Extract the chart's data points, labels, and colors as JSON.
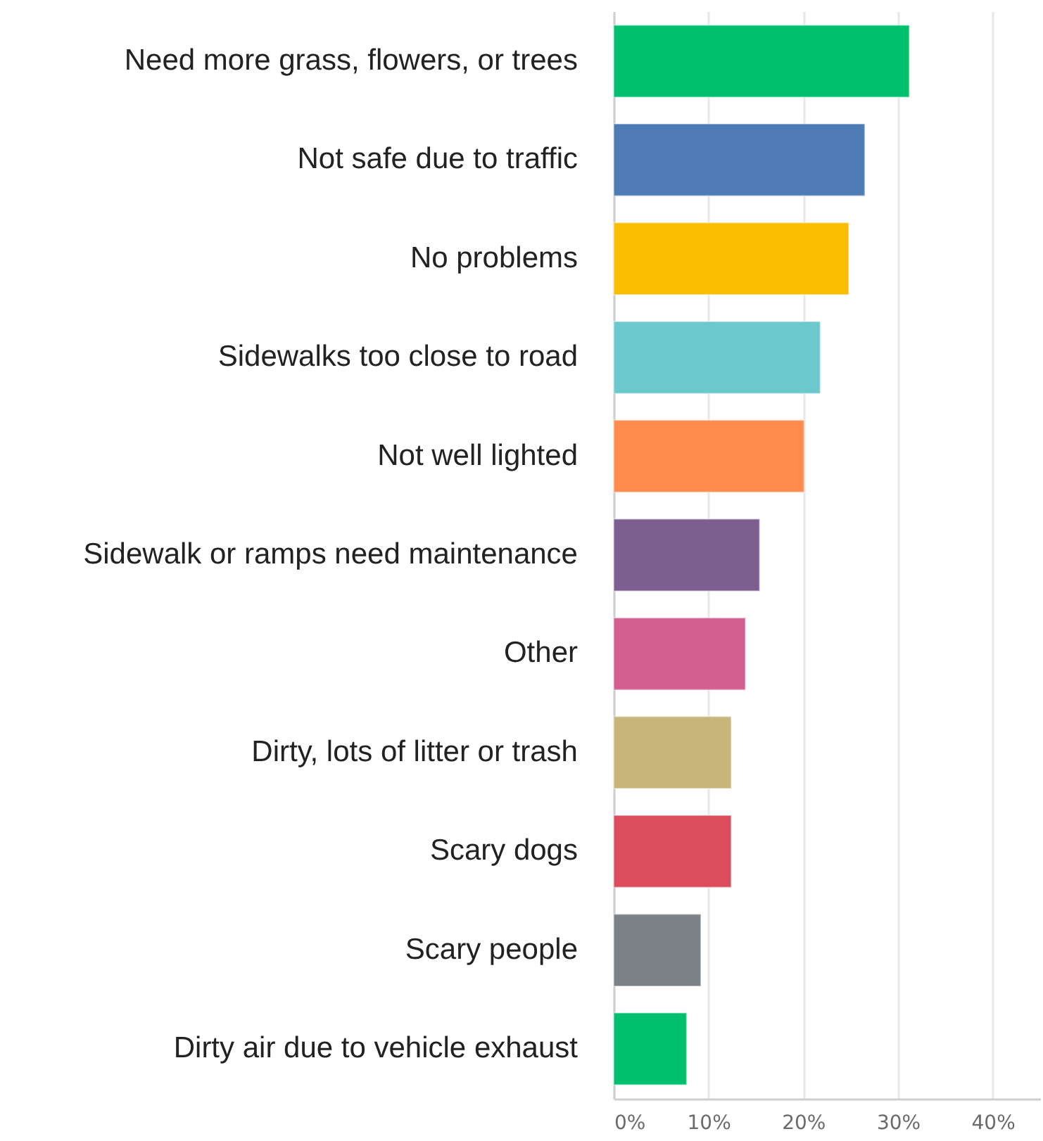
{
  "chart_data": {
    "type": "bar",
    "orientation": "horizontal",
    "categories": [
      "Need more grass, flowers, or trees",
      "Not safe due to traffic",
      "No problems",
      "Sidewalks too close to road",
      "Not well lighted",
      "Sidewalk or ramps need maintenance",
      "Other",
      "Dirty, lots of litter or trash",
      "Scary dogs",
      "Scary people",
      "Dirty air due to vehicle exhaust"
    ],
    "values": [
      31.2,
      26.5,
      24.8,
      21.8,
      20.1,
      15.4,
      13.9,
      12.4,
      12.4,
      9.2,
      7.7
    ],
    "colors": [
      "#00bf6f",
      "#507cb6",
      "#f9be00",
      "#6bc8cd",
      "#ff8b4f",
      "#7d5e90",
      "#d25f90",
      "#c8b57a",
      "#db4d5c",
      "#7a8187",
      "#00bf6f"
    ],
    "xlim": [
      0,
      45
    ],
    "xticks": [
      {
        "value": 0,
        "label": "0%"
      },
      {
        "value": 10,
        "label": "10%"
      },
      {
        "value": 20,
        "label": "20%"
      },
      {
        "value": 30,
        "label": "30%"
      },
      {
        "value": 40,
        "label": "40%"
      }
    ],
    "grid": "x"
  }
}
